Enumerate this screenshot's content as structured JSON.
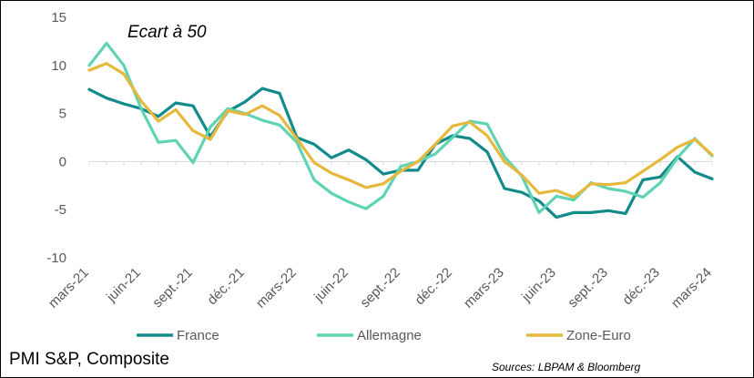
{
  "footer": {
    "title": "PMI S&P, Composite",
    "source": "Sources: LBPAM & Bloomberg"
  },
  "chart_data": {
    "type": "line",
    "annotation": "Ecart à 50",
    "ylim": [
      -10,
      15
    ],
    "yticks": [
      15,
      10,
      5,
      0,
      -5,
      -10
    ],
    "grid": false,
    "legend": "bottom",
    "x": [
      "2021-03",
      "2021-04",
      "2021-05",
      "2021-06",
      "2021-07",
      "2021-08",
      "2021-09",
      "2021-10",
      "2021-11",
      "2021-12",
      "2022-01",
      "2022-02",
      "2022-03",
      "2022-04",
      "2022-05",
      "2022-06",
      "2022-07",
      "2022-08",
      "2022-09",
      "2022-10",
      "2022-11",
      "2022-12",
      "2023-01",
      "2023-02",
      "2023-03",
      "2023-04",
      "2023-05",
      "2023-06",
      "2023-07",
      "2023-08",
      "2023-09",
      "2023-10",
      "2023-11",
      "2023-12",
      "2024-01",
      "2024-02",
      "2024-03"
    ],
    "xtick_labels": [
      "mars-21",
      "juin-21",
      "sept.-21",
      "déc.-21",
      "mars-22",
      "juin-22",
      "sept.-22",
      "déc.-22",
      "mars-23",
      "juin-23",
      "sept.-23",
      "déc.-23",
      "mars-24"
    ],
    "xtick_index": [
      0,
      3,
      6,
      9,
      12,
      15,
      18,
      21,
      24,
      27,
      30,
      33,
      36
    ],
    "series": [
      {
        "name": "France",
        "color": "#138b8b",
        "values": [
          7.5,
          6.6,
          6.0,
          5.5,
          4.7,
          6.1,
          5.8,
          2.6,
          5.2,
          6.2,
          7.6,
          7.1,
          2.5,
          1.8,
          0.4,
          1.2,
          0.2,
          -1.3,
          -0.9,
          -0.9,
          1.8,
          2.7,
          2.4,
          1.0,
          -2.8,
          -3.2,
          -4.1,
          -5.8,
          -5.3,
          -5.3,
          -5.1,
          -5.4,
          -1.9,
          -1.6,
          0.5,
          -1.1,
          -1.8
        ]
      },
      {
        "name": "Allemagne",
        "color": "#5fd3b4",
        "values": [
          10.0,
          12.3,
          10.0,
          5.5,
          2.0,
          2.2,
          -0.1,
          3.6,
          5.5,
          5.0,
          4.3,
          3.8,
          2.0,
          -1.9,
          -3.3,
          -4.2,
          -4.9,
          -3.6,
          -0.5,
          0.0,
          0.8,
          2.5,
          4.2,
          3.9,
          0.5,
          -1.5,
          -5.3,
          -3.6,
          -4.0,
          -2.2,
          -2.8,
          -3.1,
          -3.7,
          -2.2,
          0.4,
          2.4,
          0.6
        ]
      },
      {
        "name": "Zone-Euro",
        "color": "#e6b93c",
        "values": [
          9.5,
          10.2,
          9.1,
          6.3,
          4.2,
          5.4,
          3.2,
          2.3,
          5.3,
          4.9,
          5.8,
          4.8,
          2.4,
          -0.1,
          -1.2,
          -1.9,
          -2.7,
          -2.3,
          -1.0,
          0.0,
          1.8,
          3.7,
          4.1,
          2.7,
          0.0,
          -1.4,
          -3.3,
          -3.0,
          -3.7,
          -2.3,
          -2.4,
          -2.2,
          -1.0,
          0.2,
          1.5,
          2.3,
          0.7
        ]
      }
    ]
  }
}
